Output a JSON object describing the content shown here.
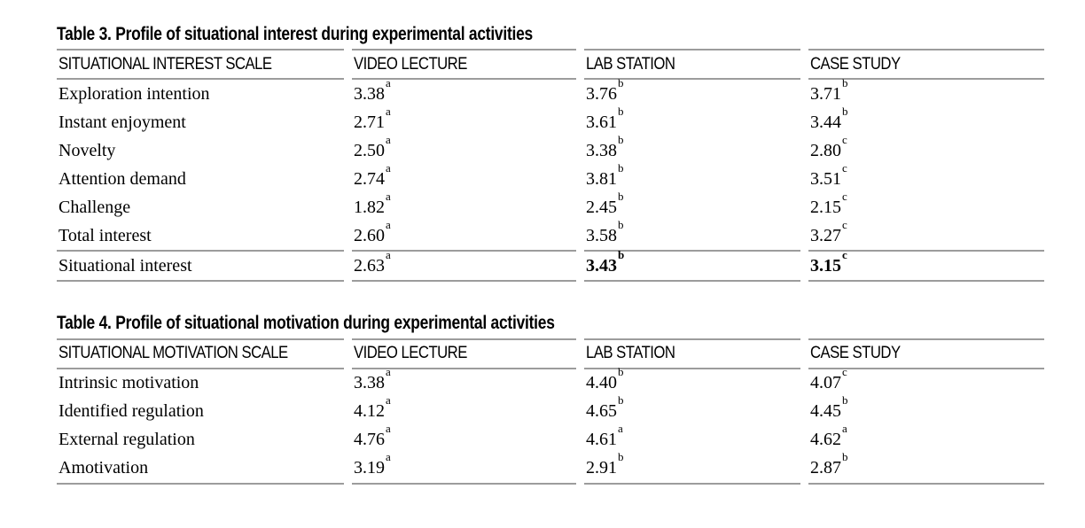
{
  "tables": [
    {
      "title": "Table 3. Profile of situational interest during experimental activities",
      "columns": [
        "SITUATIONAL INTEREST SCALE",
        "VIDEO LECTURE",
        "LAB STATION",
        "CASE STUDY"
      ],
      "rows": [
        {
          "label": "Exploration intention",
          "values": [
            {
              "v": "3.38",
              "sup": "a",
              "bold": false
            },
            {
              "v": "3.76",
              "sup": "b",
              "bold": false
            },
            {
              "v": "3.71",
              "sup": "b",
              "bold": false
            }
          ],
          "rule_above": false
        },
        {
          "label": "Instant enjoyment",
          "values": [
            {
              "v": "2.71",
              "sup": "a",
              "bold": false
            },
            {
              "v": "3.61",
              "sup": "b",
              "bold": false
            },
            {
              "v": "3.44",
              "sup": "b",
              "bold": false
            }
          ],
          "rule_above": false
        },
        {
          "label": "Novelty",
          "values": [
            {
              "v": "2.50",
              "sup": "a",
              "bold": false
            },
            {
              "v": "3.38",
              "sup": "b",
              "bold": false
            },
            {
              "v": "2.80",
              "sup": "c",
              "bold": false
            }
          ],
          "rule_above": false
        },
        {
          "label": "Attention demand",
          "values": [
            {
              "v": "2.74",
              "sup": "a",
              "bold": false
            },
            {
              "v": "3.81",
              "sup": "b",
              "bold": false
            },
            {
              "v": "3.51",
              "sup": "c",
              "bold": false
            }
          ],
          "rule_above": false
        },
        {
          "label": "Challenge",
          "values": [
            {
              "v": "1.82",
              "sup": "a",
              "bold": false
            },
            {
              "v": "2.45",
              "sup": "b",
              "bold": false
            },
            {
              "v": "2.15",
              "sup": "c",
              "bold": false
            }
          ],
          "rule_above": false
        },
        {
          "label": "Total interest",
          "values": [
            {
              "v": "2.60",
              "sup": "a",
              "bold": false
            },
            {
              "v": "3.58",
              "sup": "b",
              "bold": false
            },
            {
              "v": "3.27",
              "sup": "c",
              "bold": false
            }
          ],
          "rule_above": false
        },
        {
          "label": "Situational interest",
          "values": [
            {
              "v": "2.63",
              "sup": "a",
              "bold": false
            },
            {
              "v": "3.43",
              "sup": "b",
              "bold": true
            },
            {
              "v": "3.15",
              "sup": "c",
              "bold": true
            }
          ],
          "rule_above": true
        }
      ]
    },
    {
      "title": "Table 4. Profile of situational motivation during experimental activities",
      "columns": [
        "SITUATIONAL MOTIVATION SCALE",
        "VIDEO LECTURE",
        "LAB STATION",
        "CASE STUDY"
      ],
      "rows": [
        {
          "label": "Intrinsic motivation",
          "values": [
            {
              "v": "3.38",
              "sup": "a",
              "bold": false
            },
            {
              "v": "4.40",
              "sup": "b",
              "bold": false
            },
            {
              "v": "4.07",
              "sup": "c",
              "bold": false
            }
          ],
          "rule_above": false
        },
        {
          "label": "Identified regulation",
          "values": [
            {
              "v": "4.12",
              "sup": "a",
              "bold": false
            },
            {
              "v": "4.65",
              "sup": "b",
              "bold": false
            },
            {
              "v": "4.45",
              "sup": "b",
              "bold": false
            }
          ],
          "rule_above": false
        },
        {
          "label": "External regulation",
          "values": [
            {
              "v": "4.76",
              "sup": "a",
              "bold": false
            },
            {
              "v": "4.61",
              "sup": "a",
              "bold": false
            },
            {
              "v": "4.62",
              "sup": "a",
              "bold": false
            }
          ],
          "rule_above": false
        },
        {
          "label": "Amotivation",
          "values": [
            {
              "v": "3.19",
              "sup": "a",
              "bold": false
            },
            {
              "v": "2.91",
              "sup": "b",
              "bold": false
            },
            {
              "v": "2.87",
              "sup": "b",
              "bold": false
            }
          ],
          "rule_above": false
        }
      ]
    }
  ]
}
